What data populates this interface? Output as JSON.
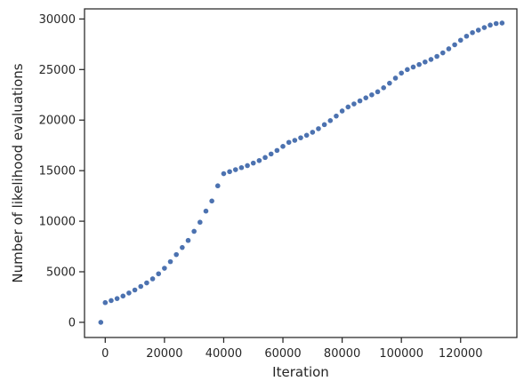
{
  "chart_data": {
    "type": "scatter",
    "title": "",
    "xlabel": "Iteration",
    "ylabel": "Number of likelihood evaluations",
    "xlim": [
      -7000,
      139000
    ],
    "ylim": [
      -1500,
      31000
    ],
    "xticks": [
      0,
      20000,
      40000,
      60000,
      80000,
      100000,
      120000
    ],
    "yticks": [
      0,
      5000,
      10000,
      15000,
      20000,
      25000,
      30000
    ],
    "grid": false,
    "marker_color": "#4c72b0",
    "series": [
      {
        "points": [
          [
            -1500,
            0
          ],
          [
            0,
            1950
          ],
          [
            2000,
            2150
          ],
          [
            4000,
            2350
          ],
          [
            6000,
            2600
          ],
          [
            8000,
            2900
          ],
          [
            10000,
            3200
          ],
          [
            12000,
            3550
          ],
          [
            14000,
            3900
          ],
          [
            16000,
            4300
          ],
          [
            18000,
            4800
          ],
          [
            20000,
            5350
          ],
          [
            22000,
            6000
          ],
          [
            24000,
            6700
          ],
          [
            26000,
            7400
          ],
          [
            28000,
            8100
          ],
          [
            30000,
            9000
          ],
          [
            32000,
            9900
          ],
          [
            34000,
            11000
          ],
          [
            36000,
            12000
          ],
          [
            38000,
            13500
          ],
          [
            40000,
            14700
          ],
          [
            42000,
            14900
          ],
          [
            44000,
            15100
          ],
          [
            46000,
            15300
          ],
          [
            48000,
            15500
          ],
          [
            50000,
            15750
          ],
          [
            52000,
            16000
          ],
          [
            54000,
            16300
          ],
          [
            56000,
            16650
          ],
          [
            58000,
            17000
          ],
          [
            60000,
            17400
          ],
          [
            62000,
            17800
          ],
          [
            64000,
            18000
          ],
          [
            66000,
            18250
          ],
          [
            68000,
            18500
          ],
          [
            70000,
            18800
          ],
          [
            72000,
            19150
          ],
          [
            74000,
            19550
          ],
          [
            76000,
            19950
          ],
          [
            78000,
            20400
          ],
          [
            80000,
            20900
          ],
          [
            82000,
            21300
          ],
          [
            84000,
            21600
          ],
          [
            86000,
            21900
          ],
          [
            88000,
            22200
          ],
          [
            90000,
            22500
          ],
          [
            92000,
            22800
          ],
          [
            94000,
            23200
          ],
          [
            96000,
            23650
          ],
          [
            98000,
            24150
          ],
          [
            100000,
            24650
          ],
          [
            102000,
            25000
          ],
          [
            104000,
            25250
          ],
          [
            106000,
            25500
          ],
          [
            108000,
            25750
          ],
          [
            110000,
            26000
          ],
          [
            112000,
            26300
          ],
          [
            114000,
            26650
          ],
          [
            116000,
            27050
          ],
          [
            118000,
            27450
          ],
          [
            120000,
            27900
          ],
          [
            122000,
            28300
          ],
          [
            124000,
            28650
          ],
          [
            126000,
            28900
          ],
          [
            128000,
            29150
          ],
          [
            130000,
            29400
          ],
          [
            132000,
            29550
          ],
          [
            134000,
            29600
          ]
        ]
      }
    ]
  }
}
